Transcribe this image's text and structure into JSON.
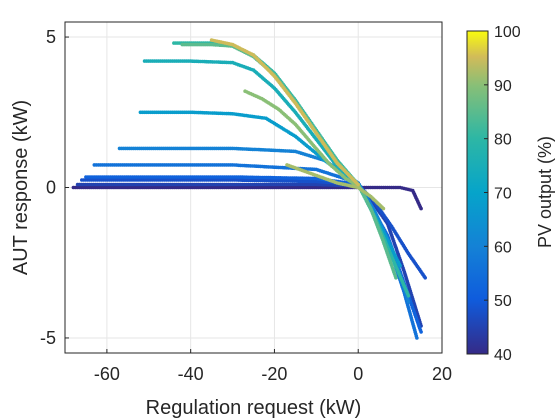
{
  "chart_data": {
    "type": "scatter",
    "title": "",
    "xlabel": "Regulation request (kW)",
    "ylabel": "AUT response (kW)",
    "xlim": [
      -70,
      20
    ],
    "ylim": [
      -5.5,
      5.5
    ],
    "xticks": [
      -60,
      -40,
      -20,
      0,
      20
    ],
    "xtick_labels": [
      "-60",
      "-40",
      "-20",
      "0",
      "20"
    ],
    "yticks": [
      -5,
      0,
      5
    ],
    "ytick_labels": [
      "-5",
      "0",
      "5"
    ],
    "grid": true,
    "colorbar": {
      "label": "PV output (%)",
      "range": [
        40,
        100
      ],
      "ticks": [
        40,
        50,
        60,
        70,
        80,
        90,
        100
      ],
      "tick_labels": [
        "40",
        "50",
        "60",
        "70",
        "80",
        "90",
        "100"
      ],
      "colormap": "parula"
    },
    "series": [
      {
        "pv": 40,
        "x": [
          -68,
          -50,
          -30,
          -10,
          0,
          5,
          10,
          13,
          15
        ],
        "y": [
          0.0,
          0.0,
          0.0,
          0.0,
          0.0,
          0.0,
          0.0,
          -0.1,
          -0.7
        ]
      },
      {
        "pv": 45,
        "x": [
          -67,
          -50,
          -30,
          -10,
          0,
          3,
          7,
          11,
          15
        ],
        "y": [
          0.1,
          0.1,
          0.1,
          0.1,
          0.05,
          -0.4,
          -1.2,
          -2.8,
          -4.6
        ]
      },
      {
        "pv": 48,
        "x": [
          -66,
          -50,
          -30,
          -10,
          0,
          4,
          8,
          12,
          16
        ],
        "y": [
          0.25,
          0.25,
          0.25,
          0.2,
          0.1,
          -0.5,
          -1.3,
          -2.2,
          -3.0
        ]
      },
      {
        "pv": 52,
        "x": [
          -65,
          -50,
          -30,
          -10,
          0,
          3,
          7,
          11,
          15
        ],
        "y": [
          0.35,
          0.35,
          0.35,
          0.3,
          0.1,
          -0.6,
          -1.6,
          -3.2,
          -4.8
        ]
      },
      {
        "pv": 56,
        "x": [
          -63,
          -50,
          -30,
          -10,
          0,
          3,
          7,
          11,
          14
        ],
        "y": [
          0.75,
          0.75,
          0.75,
          0.6,
          0.15,
          -0.6,
          -1.8,
          -3.5,
          -5.0
        ]
      },
      {
        "pv": 60,
        "x": [
          -57,
          -45,
          -30,
          -15,
          -8,
          0,
          4,
          8,
          12
        ],
        "y": [
          1.3,
          1.3,
          1.3,
          1.2,
          0.9,
          0.15,
          -0.8,
          -2.0,
          -3.8
        ]
      },
      {
        "pv": 68,
        "x": [
          -52,
          -40,
          -30,
          -22,
          -15,
          -8,
          0,
          5,
          10
        ],
        "y": [
          2.5,
          2.5,
          2.45,
          2.3,
          1.7,
          0.9,
          0.1,
          -1.2,
          -2.6
        ]
      },
      {
        "pv": 75,
        "x": [
          -51,
          -40,
          -30,
          -25,
          -20,
          -15,
          -10,
          -5,
          0
        ],
        "y": [
          4.2,
          4.2,
          4.15,
          3.9,
          3.3,
          2.5,
          1.6,
          0.7,
          0.1
        ]
      },
      {
        "pv": 80,
        "x": [
          -44,
          -35,
          -30,
          -25,
          -20,
          -15,
          -10,
          -5,
          0,
          4,
          8,
          12
        ],
        "y": [
          4.8,
          4.8,
          4.7,
          4.4,
          3.8,
          2.9,
          1.9,
          0.9,
          0.1,
          -1.0,
          -2.3,
          -3.6
        ]
      },
      {
        "pv": 85,
        "x": [
          -42,
          -35,
          -30,
          -25,
          -20,
          -15,
          -10,
          -5,
          0,
          3,
          6,
          9
        ],
        "y": [
          4.75,
          4.75,
          4.7,
          4.35,
          3.75,
          2.85,
          1.85,
          0.85,
          0.1,
          -0.7,
          -1.8,
          -3.0
        ]
      },
      {
        "pv": 90,
        "x": [
          -27,
          -23,
          -19,
          -15,
          -11,
          -7,
          -3,
          0
        ],
        "y": [
          3.2,
          2.95,
          2.6,
          2.1,
          1.45,
          0.8,
          0.3,
          0.05
        ]
      },
      {
        "pv": 92,
        "x": [
          -17,
          -13,
          -9,
          -5,
          0,
          3,
          6
        ],
        "y": [
          0.75,
          0.55,
          0.35,
          0.15,
          0.0,
          -0.3,
          -0.7
        ]
      },
      {
        "pv": 95,
        "x": [
          -35,
          -30,
          -25,
          -20,
          -15,
          -10,
          -5,
          0
        ],
        "y": [
          4.9,
          4.75,
          4.4,
          3.7,
          2.8,
          1.8,
          0.8,
          0.1
        ]
      }
    ]
  }
}
